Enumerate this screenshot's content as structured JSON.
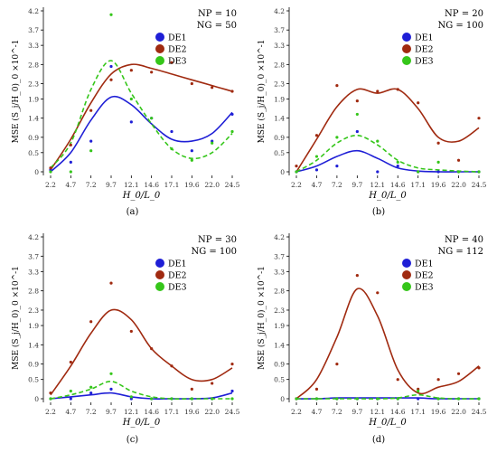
{
  "figure": {
    "panels_label": [
      "(a)",
      "(b)",
      "(c)",
      "(d)"
    ]
  },
  "colors": {
    "DE1": "#1f1fd6",
    "DE2": "#a02a10",
    "DE3": "#35c61a",
    "axis": "#000000",
    "tick": "#333333"
  },
  "chart_data": [
    {
      "type": "scatter",
      "panel": "(a)",
      "annotations": [
        "NP = 10",
        "NG = 50"
      ],
      "xlabel": "H_0/L_0",
      "ylabel": "MSE (S_j/H_0)_0 ×10^-1",
      "x_ticks": [
        "2.2",
        "4.7",
        "7.2",
        "9.7",
        "12.1",
        "14.6",
        "17.1",
        "19.6",
        "22.0",
        "24.5"
      ],
      "y_ticks": [
        0.0,
        0.5,
        0.9,
        1.4,
        1.9,
        2.3,
        2.8,
        3.3,
        3.7,
        4.2
      ],
      "ylim": [
        0,
        4.2
      ],
      "legend_position": "top-right",
      "series": [
        {
          "name": "DE1",
          "points": [
            0.05,
            0.25,
            0.8,
            2.75,
            1.3,
            1.4,
            1.05,
            0.55,
            0.8,
            1.5
          ],
          "curve": [
            0.0,
            0.5,
            1.35,
            1.95,
            1.75,
            1.25,
            0.85,
            0.8,
            1.0,
            1.55
          ]
        },
        {
          "name": "DE2",
          "points": [
            0.1,
            0.7,
            1.6,
            2.4,
            2.65,
            2.6,
            2.85,
            2.3,
            2.2,
            2.1
          ],
          "curve": [
            0.05,
            0.85,
            1.8,
            2.55,
            2.8,
            2.7,
            2.55,
            2.4,
            2.25,
            2.1
          ]
        },
        {
          "name": "DE3",
          "points": [
            0.0,
            0.0,
            0.55,
            4.1,
            1.9,
            1.4,
            0.6,
            0.3,
            0.75,
            1.05
          ],
          "curve": [
            0.1,
            0.75,
            2.15,
            2.9,
            2.05,
            1.25,
            0.6,
            0.35,
            0.5,
            1.0
          ]
        }
      ]
    },
    {
      "type": "scatter",
      "panel": "(b)",
      "annotations": [
        "NP = 20",
        "NG = 100"
      ],
      "xlabel": "H_0/L_0",
      "ylabel": "MSE (S_j/H_0)_0 ×10^-1",
      "x_ticks": [
        "2.2",
        "4.7",
        "7.2",
        "9.7",
        "12.1",
        "14.6",
        "17.1",
        "19.6",
        "22.0",
        "24.5"
      ],
      "y_ticks": [
        0.0,
        0.5,
        0.9,
        1.4,
        1.9,
        2.3,
        2.8,
        3.3,
        3.7,
        4.2
      ],
      "ylim": [
        0,
        4.2
      ],
      "legend_position": "top-right",
      "series": [
        {
          "name": "DE1",
          "points": [
            0.0,
            0.05,
            0.15,
            1.05,
            0.0,
            0.15,
            0.0,
            0.0,
            0.0,
            0.0
          ],
          "curve": [
            0.0,
            0.15,
            0.4,
            0.55,
            0.35,
            0.1,
            0.02,
            0.0,
            0.0,
            0.0
          ]
        },
        {
          "name": "DE2",
          "points": [
            0.15,
            0.95,
            2.25,
            1.85,
            2.1,
            2.15,
            1.8,
            0.75,
            0.3,
            1.4
          ],
          "curve": [
            0.0,
            0.85,
            1.7,
            2.15,
            2.05,
            2.15,
            1.65,
            0.9,
            0.8,
            1.15
          ]
        },
        {
          "name": "DE3",
          "points": [
            0.0,
            0.4,
            0.9,
            1.5,
            0.8,
            0.25,
            0.0,
            0.25,
            0.0,
            0.0
          ],
          "curve": [
            0.0,
            0.3,
            0.75,
            0.95,
            0.7,
            0.3,
            0.1,
            0.05,
            0.02,
            0.0
          ]
        }
      ]
    },
    {
      "type": "scatter",
      "panel": "(c)",
      "annotations": [
        "NP = 30",
        "NG = 100"
      ],
      "xlabel": "H_0/L_0",
      "ylabel": "MSE (S_j/H_0)_0 ×10^-1",
      "x_ticks": [
        "2.2",
        "4.7",
        "7.2",
        "9.7",
        "12.1",
        "14.6",
        "17.1",
        "19.6",
        "22.0",
        "24.5"
      ],
      "y_ticks": [
        0.0,
        0.5,
        0.9,
        1.4,
        1.9,
        2.3,
        2.8,
        3.3,
        3.7,
        4.2
      ],
      "ylim": [
        0,
        4.2
      ],
      "legend_position": "top-right",
      "series": [
        {
          "name": "DE1",
          "points": [
            0.0,
            0.0,
            0.15,
            0.25,
            0.0,
            0.0,
            0.0,
            0.0,
            0.0,
            0.2
          ],
          "curve": [
            0.0,
            0.05,
            0.1,
            0.15,
            0.05,
            0.0,
            0.0,
            0.0,
            0.02,
            0.15
          ]
        },
        {
          "name": "DE2",
          "points": [
            0.15,
            0.95,
            2.0,
            3.0,
            1.75,
            1.3,
            0.85,
            0.25,
            0.4,
            0.9
          ],
          "curve": [
            0.1,
            0.85,
            1.7,
            2.3,
            2.05,
            1.3,
            0.85,
            0.5,
            0.5,
            0.8
          ]
        },
        {
          "name": "DE3",
          "points": [
            0.0,
            0.2,
            0.3,
            0.65,
            0.05,
            0.0,
            0.0,
            0.0,
            0.0,
            0.0
          ],
          "curve": [
            0.0,
            0.1,
            0.25,
            0.45,
            0.2,
            0.05,
            0.0,
            0.0,
            0.0,
            0.0
          ]
        }
      ]
    },
    {
      "type": "scatter",
      "panel": "(d)",
      "annotations": [
        "NP = 40",
        "NG = 112"
      ],
      "xlabel": "H_0/L_0",
      "ylabel": "MSE (S_j/H_0)_0 ×10^-1",
      "x_ticks": [
        "2.2",
        "4.7",
        "7.2",
        "9.7",
        "12.1",
        "14.6",
        "17.1",
        "19.6",
        "22.0",
        "24.5"
      ],
      "y_ticks": [
        0.0,
        0.5,
        0.9,
        1.4,
        1.9,
        2.3,
        2.8,
        3.3,
        3.7,
        4.2
      ],
      "ylim": [
        0,
        4.2
      ],
      "legend_position": "top-right",
      "series": [
        {
          "name": "DE1",
          "points": [
            0.0,
            0.0,
            0.0,
            0.0,
            0.0,
            0.0,
            0.0,
            0.0,
            0.0,
            0.0
          ],
          "curve": [
            0.0,
            0.0,
            0.02,
            0.02,
            0.02,
            0.02,
            0.02,
            0.0,
            0.0,
            0.0
          ]
        },
        {
          "name": "DE2",
          "points": [
            0.0,
            0.25,
            0.9,
            3.2,
            2.75,
            0.5,
            0.25,
            0.5,
            0.65,
            0.8
          ],
          "curve": [
            0.0,
            0.5,
            1.6,
            2.85,
            2.15,
            0.75,
            0.15,
            0.3,
            0.45,
            0.85
          ]
        },
        {
          "name": "DE3",
          "points": [
            0.0,
            0.0,
            0.0,
            0.0,
            0.0,
            0.0,
            0.2,
            0.0,
            0.0,
            0.0
          ],
          "curve": [
            0.0,
            0.0,
            0.0,
            0.0,
            0.0,
            0.02,
            0.1,
            0.02,
            0.0,
            0.0
          ]
        }
      ]
    }
  ]
}
